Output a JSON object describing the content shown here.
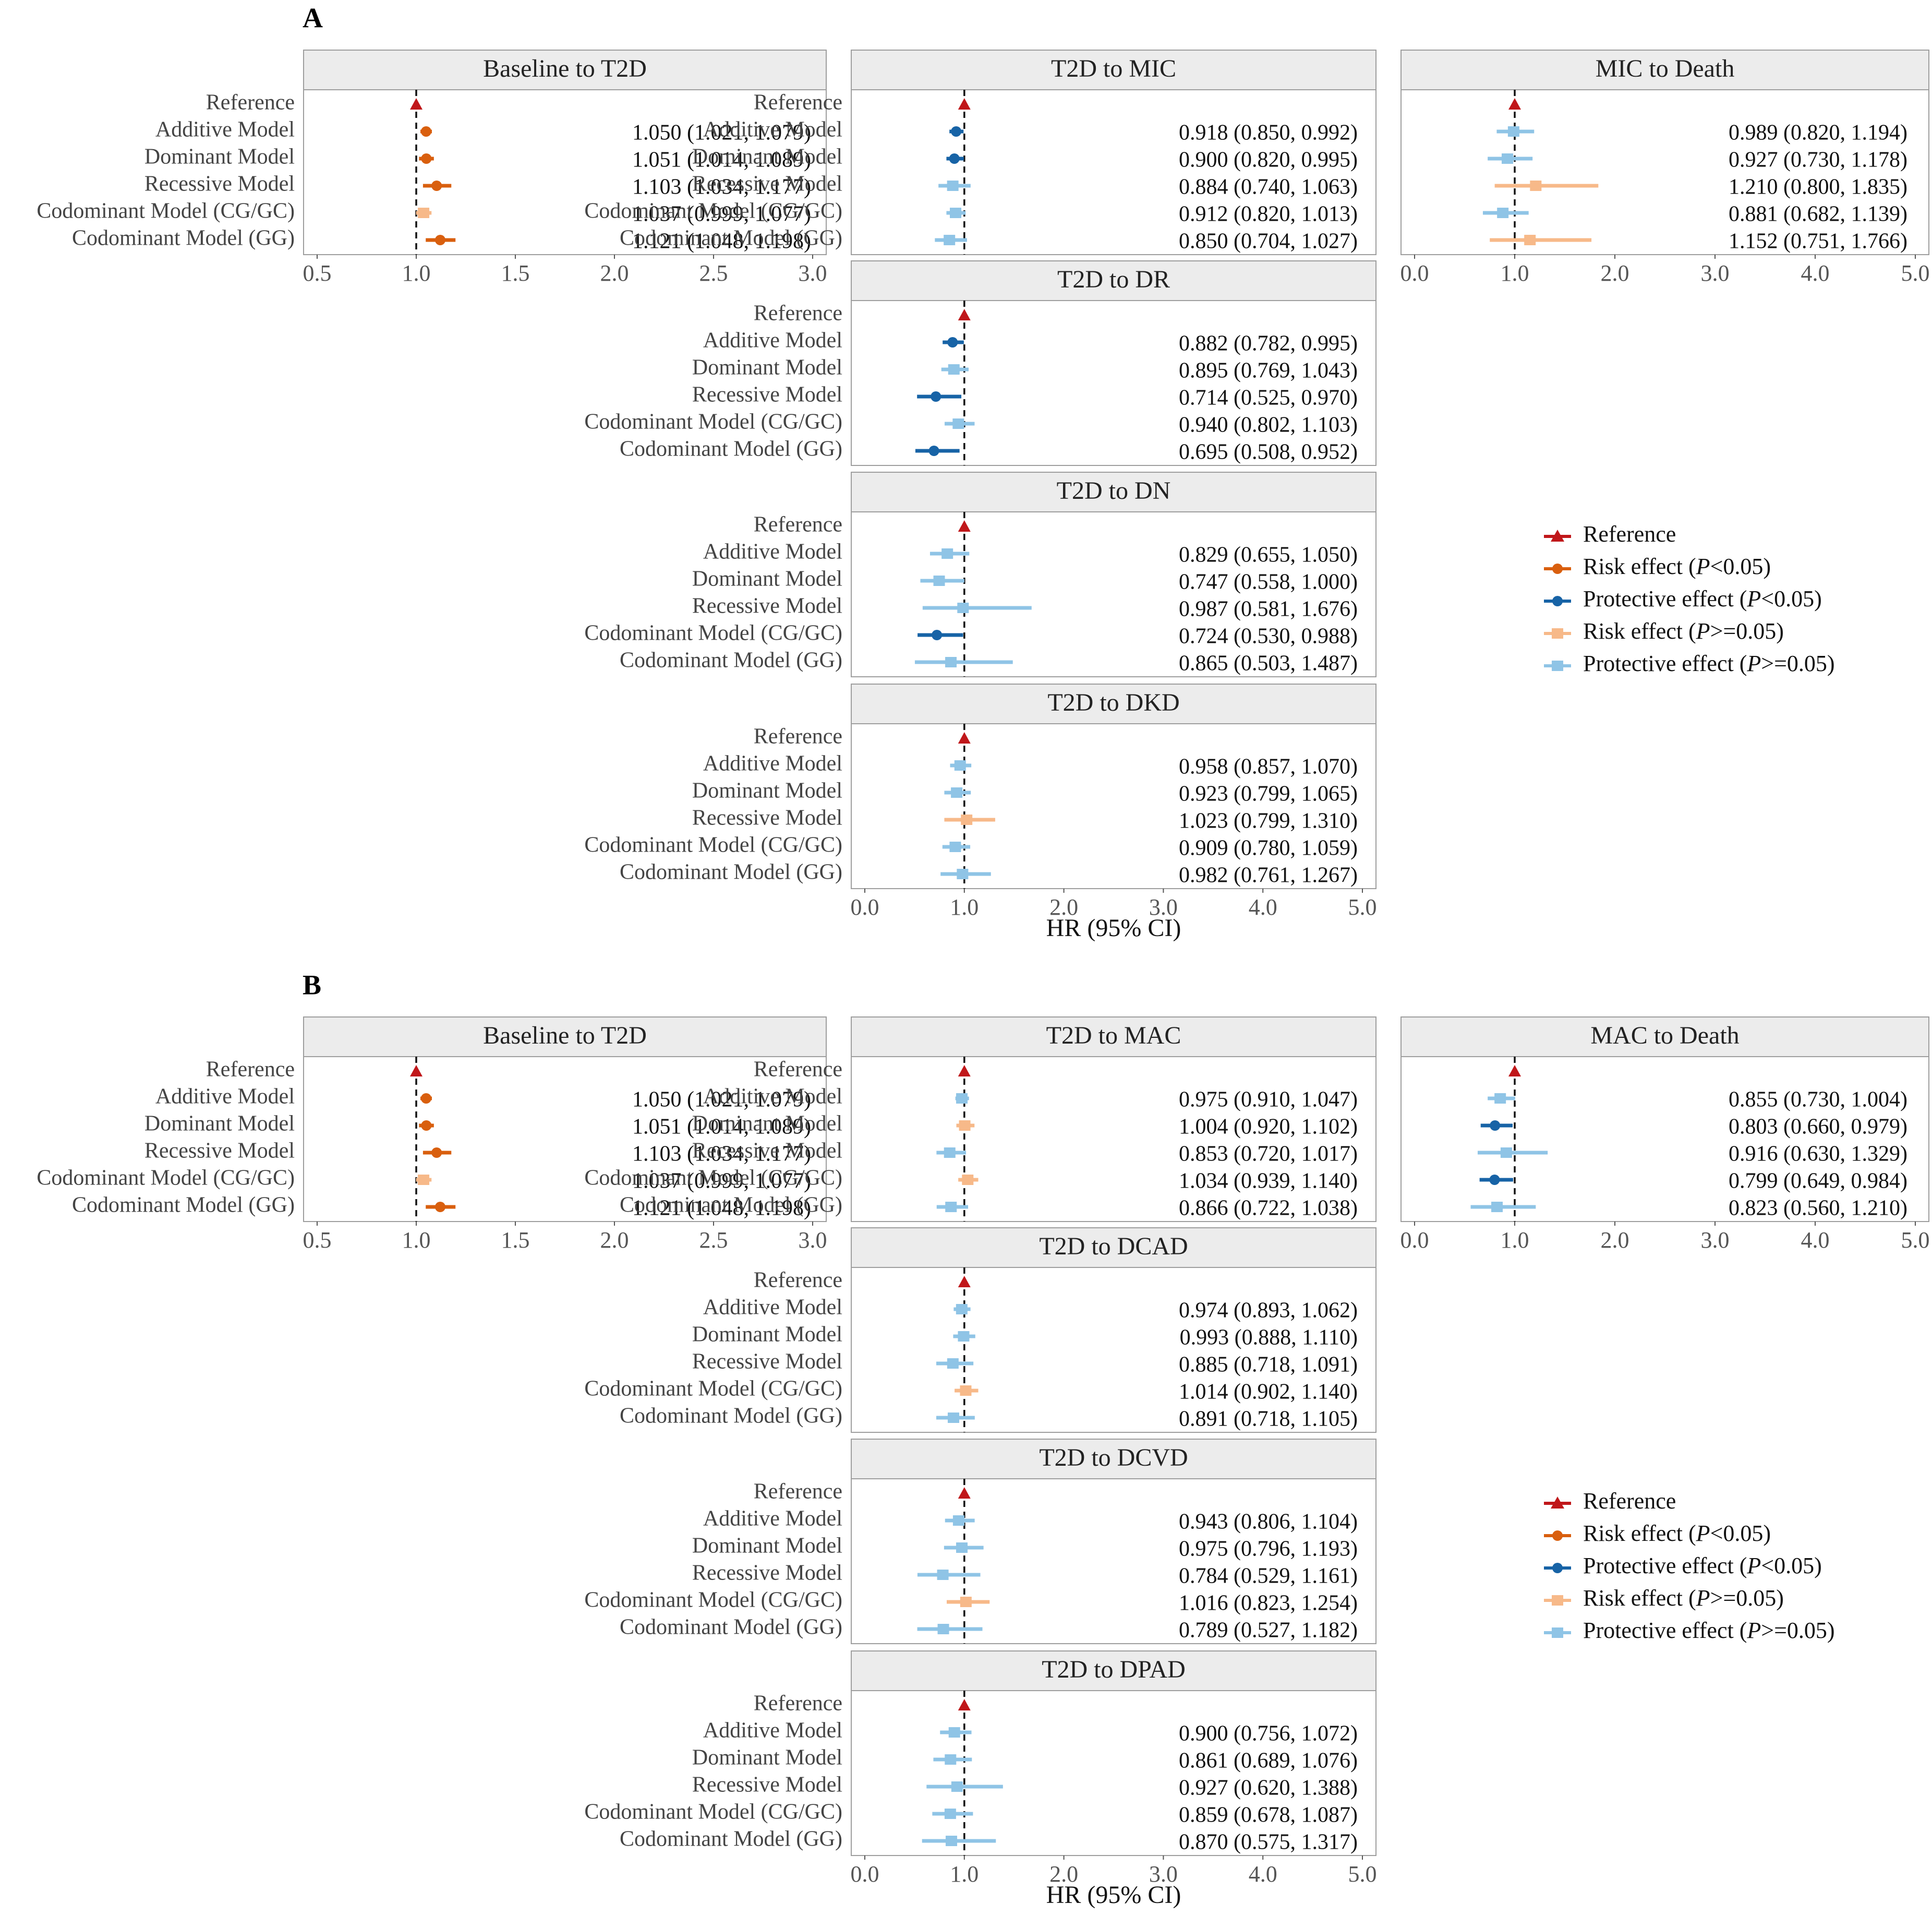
{
  "colors": {
    "reference": "#c0171a",
    "risk_sig": "#d95f0e",
    "protective_sig": "#1763a6",
    "risk_ns": "#f7b989",
    "protective_ns": "#8fc4e6",
    "strip_fill": "#ececec",
    "panel_border": "#9e9e9e"
  },
  "row_labels": [
    "Reference",
    "Additive Model",
    "Dominant Model",
    "Recessive Model",
    "Codominant Model (CG/GC)",
    "Codominant Model (GG)"
  ],
  "axis_title": "HR (95% CI)",
  "legend": [
    {
      "key": "reference",
      "text": "Reference"
    },
    {
      "key": "risk_sig",
      "text": "Risk effect (",
      "italic": "P",
      "suffix": "<0.05)"
    },
    {
      "key": "protective_sig",
      "text": "Protective effect (",
      "italic": "P",
      "suffix": "<0.05)"
    },
    {
      "key": "risk_ns",
      "text": "Risk effect (",
      "italic": "P",
      "suffix": ">=0.05)"
    },
    {
      "key": "protective_ns",
      "text": "Protective effect (",
      "italic": "P",
      "suffix": ">=0.05)"
    }
  ],
  "chart_data": [
    {
      "panel": "A",
      "type": "forest",
      "facets": [
        {
          "title": "Baseline to T2D",
          "xlim": [
            0.5,
            3.0
          ],
          "ticks": [
            "0.5",
            "1.0",
            "1.5",
            "2.0",
            "2.5",
            "3.0"
          ],
          "tick_values": [
            0.5,
            1.0,
            1.5,
            2.0,
            2.5,
            3.0
          ],
          "rows": [
            {
              "model": "Additive Model",
              "hr": 1.05,
              "lo": 1.021,
              "hi": 1.079,
              "effect": "risk_sig",
              "text": "1.050 (1.021, 1.079)"
            },
            {
              "model": "Dominant Model",
              "hr": 1.051,
              "lo": 1.014,
              "hi": 1.089,
              "effect": "risk_sig",
              "text": "1.051 (1.014, 1.089)"
            },
            {
              "model": "Recessive Model",
              "hr": 1.103,
              "lo": 1.034,
              "hi": 1.177,
              "effect": "risk_sig",
              "text": "1.103 (1.034, 1.177)"
            },
            {
              "model": "Codominant Model (CG/GC)",
              "hr": 1.037,
              "lo": 0.999,
              "hi": 1.077,
              "effect": "risk_ns",
              "text": "1.037 (0.999, 1.077)"
            },
            {
              "model": "Codominant Model (GG)",
              "hr": 1.121,
              "lo": 1.048,
              "hi": 1.198,
              "effect": "risk_sig",
              "text": "1.121 (1.048, 1.198)"
            }
          ]
        },
        {
          "title": "T2D to MIC",
          "xlim": [
            0.0,
            5.0
          ],
          "ticks": [],
          "tick_values": [],
          "rows": [
            {
              "model": "Additive Model",
              "hr": 0.918,
              "lo": 0.85,
              "hi": 0.992,
              "effect": "protective_sig",
              "text": "0.918 (0.850, 0.992)"
            },
            {
              "model": "Dominant Model",
              "hr": 0.9,
              "lo": 0.82,
              "hi": 0.995,
              "effect": "protective_sig",
              "text": "0.900 (0.820, 0.995)"
            },
            {
              "model": "Recessive Model",
              "hr": 0.884,
              "lo": 0.74,
              "hi": 1.063,
              "effect": "protective_ns",
              "text": "0.884 (0.740, 1.063)"
            },
            {
              "model": "Codominant Model (CG/GC)",
              "hr": 0.912,
              "lo": 0.82,
              "hi": 1.013,
              "effect": "protective_ns",
              "text": "0.912 (0.820, 1.013)"
            },
            {
              "model": "Codominant Model (GG)",
              "hr": 0.85,
              "lo": 0.704,
              "hi": 1.027,
              "effect": "protective_ns",
              "text": "0.850 (0.704, 1.027)"
            }
          ]
        },
        {
          "title": "MIC to Death",
          "xlim": [
            0.0,
            5.0
          ],
          "ticks": [
            "0.0",
            "1.0",
            "2.0",
            "3.0",
            "4.0",
            "5.0"
          ],
          "tick_values": [
            0,
            1,
            2,
            3,
            4,
            5
          ],
          "rows": [
            {
              "model": "Additive Model",
              "hr": 0.989,
              "lo": 0.82,
              "hi": 1.194,
              "effect": "protective_ns",
              "text": "0.989 (0.820, 1.194)"
            },
            {
              "model": "Dominant Model",
              "hr": 0.927,
              "lo": 0.73,
              "hi": 1.178,
              "effect": "protective_ns",
              "text": "0.927 (0.730, 1.178)"
            },
            {
              "model": "Recessive Model",
              "hr": 1.21,
              "lo": 0.8,
              "hi": 1.835,
              "effect": "risk_ns",
              "text": "1.210 (0.800, 1.835)"
            },
            {
              "model": "Codominant Model (CG/GC)",
              "hr": 0.881,
              "lo": 0.682,
              "hi": 1.139,
              "effect": "protective_ns",
              "text": "0.881 (0.682, 1.139)"
            },
            {
              "model": "Codominant Model (GG)",
              "hr": 1.152,
              "lo": 0.751,
              "hi": 1.766,
              "effect": "risk_ns",
              "text": "1.152 (0.751, 1.766)"
            }
          ]
        },
        {
          "title": "T2D to DR",
          "xlim": [
            0.0,
            5.0
          ],
          "ticks": [],
          "tick_values": [],
          "rows": [
            {
              "model": "Additive Model",
              "hr": 0.882,
              "lo": 0.782,
              "hi": 0.995,
              "effect": "protective_sig",
              "text": "0.882 (0.782, 0.995)"
            },
            {
              "model": "Dominant Model",
              "hr": 0.895,
              "lo": 0.769,
              "hi": 1.043,
              "effect": "protective_ns",
              "text": "0.895 (0.769, 1.043)"
            },
            {
              "model": "Recessive Model",
              "hr": 0.714,
              "lo": 0.525,
              "hi": 0.97,
              "effect": "protective_sig",
              "text": "0.714 (0.525, 0.970)"
            },
            {
              "model": "Codominant Model (CG/GC)",
              "hr": 0.94,
              "lo": 0.802,
              "hi": 1.103,
              "effect": "protective_ns",
              "text": "0.940 (0.802, 1.103)"
            },
            {
              "model": "Codominant Model (GG)",
              "hr": 0.695,
              "lo": 0.508,
              "hi": 0.952,
              "effect": "protective_sig",
              "text": "0.695 (0.508, 0.952)"
            }
          ]
        },
        {
          "title": "T2D to DN",
          "xlim": [
            0.0,
            5.0
          ],
          "ticks": [],
          "tick_values": [],
          "rows": [
            {
              "model": "Additive Model",
              "hr": 0.829,
              "lo": 0.655,
              "hi": 1.05,
              "effect": "protective_ns",
              "text": "0.829 (0.655, 1.050)"
            },
            {
              "model": "Dominant Model",
              "hr": 0.747,
              "lo": 0.558,
              "hi": 1.0,
              "effect": "protective_ns",
              "text": "0.747 (0.558, 1.000)"
            },
            {
              "model": "Recessive Model",
              "hr": 0.987,
              "lo": 0.581,
              "hi": 1.676,
              "effect": "protective_ns",
              "text": "0.987 (0.581, 1.676)"
            },
            {
              "model": "Codominant Model (CG/GC)",
              "hr": 0.724,
              "lo": 0.53,
              "hi": 0.988,
              "effect": "protective_sig",
              "text": "0.724 (0.530, 0.988)"
            },
            {
              "model": "Codominant Model (GG)",
              "hr": 0.865,
              "lo": 0.503,
              "hi": 1.487,
              "effect": "protective_ns",
              "text": "0.865 (0.503, 1.487)"
            }
          ]
        },
        {
          "title": "T2D to DKD",
          "xlim": [
            0.0,
            5.0
          ],
          "ticks": [
            "0.0",
            "1.0",
            "2.0",
            "3.0",
            "4.0",
            "5.0"
          ],
          "tick_values": [
            0,
            1,
            2,
            3,
            4,
            5
          ],
          "rows": [
            {
              "model": "Additive Model",
              "hr": 0.958,
              "lo": 0.857,
              "hi": 1.07,
              "effect": "protective_ns",
              "text": "0.958 (0.857, 1.070)"
            },
            {
              "model": "Dominant Model",
              "hr": 0.923,
              "lo": 0.799,
              "hi": 1.065,
              "effect": "protective_ns",
              "text": "0.923 (0.799, 1.065)"
            },
            {
              "model": "Recessive Model",
              "hr": 1.023,
              "lo": 0.799,
              "hi": 1.31,
              "effect": "risk_ns",
              "text": "1.023 (0.799, 1.310)"
            },
            {
              "model": "Codominant Model (CG/GC)",
              "hr": 0.909,
              "lo": 0.78,
              "hi": 1.059,
              "effect": "protective_ns",
              "text": "0.909 (0.780, 1.059)"
            },
            {
              "model": "Codominant Model (GG)",
              "hr": 0.982,
              "lo": 0.761,
              "hi": 1.267,
              "effect": "protective_ns",
              "text": "0.982 (0.761, 1.267)"
            }
          ]
        }
      ]
    },
    {
      "panel": "B",
      "type": "forest",
      "facets": [
        {
          "title": "Baseline to T2D",
          "xlim": [
            0.5,
            3.0
          ],
          "ticks": [
            "0.5",
            "1.0",
            "1.5",
            "2.0",
            "2.5",
            "3.0"
          ],
          "tick_values": [
            0.5,
            1.0,
            1.5,
            2.0,
            2.5,
            3.0
          ],
          "rows": [
            {
              "model": "Additive Model",
              "hr": 1.05,
              "lo": 1.021,
              "hi": 1.079,
              "effect": "risk_sig",
              "text": "1.050 (1.021, 1.079)"
            },
            {
              "model": "Dominant Model",
              "hr": 1.051,
              "lo": 1.014,
              "hi": 1.089,
              "effect": "risk_sig",
              "text": "1.051 (1.014, 1.089)"
            },
            {
              "model": "Recessive Model",
              "hr": 1.103,
              "lo": 1.034,
              "hi": 1.177,
              "effect": "risk_sig",
              "text": "1.103 (1.034, 1.177)"
            },
            {
              "model": "Codominant Model (CG/GC)",
              "hr": 1.037,
              "lo": 0.999,
              "hi": 1.077,
              "effect": "risk_ns",
              "text": "1.037 (0.999, 1.077)"
            },
            {
              "model": "Codominant Model (GG)",
              "hr": 1.121,
              "lo": 1.048,
              "hi": 1.198,
              "effect": "risk_sig",
              "text": "1.121 (1.048, 1.198)"
            }
          ]
        },
        {
          "title": "T2D to MAC",
          "xlim": [
            0.0,
            5.0
          ],
          "ticks": [],
          "tick_values": [],
          "rows": [
            {
              "model": "Additive Model",
              "hr": 0.975,
              "lo": 0.91,
              "hi": 1.047,
              "effect": "protective_ns",
              "text": "0.975 (0.910, 1.047)"
            },
            {
              "model": "Dominant Model",
              "hr": 1.004,
              "lo": 0.92,
              "hi": 1.102,
              "effect": "risk_ns",
              "text": "1.004 (0.920, 1.102)"
            },
            {
              "model": "Recessive Model",
              "hr": 0.853,
              "lo": 0.72,
              "hi": 1.017,
              "effect": "protective_ns",
              "text": "0.853 (0.720, 1.017)"
            },
            {
              "model": "Codominant Model (CG/GC)",
              "hr": 1.034,
              "lo": 0.939,
              "hi": 1.14,
              "effect": "risk_ns",
              "text": "1.034 (0.939, 1.140)"
            },
            {
              "model": "Codominant Model (GG)",
              "hr": 0.866,
              "lo": 0.722,
              "hi": 1.038,
              "effect": "protective_ns",
              "text": "0.866 (0.722, 1.038)"
            }
          ]
        },
        {
          "title": "MAC to Death",
          "xlim": [
            0.0,
            5.0
          ],
          "ticks": [
            "0.0",
            "1.0",
            "2.0",
            "3.0",
            "4.0",
            "5.0"
          ],
          "tick_values": [
            0,
            1,
            2,
            3,
            4,
            5
          ],
          "rows": [
            {
              "model": "Additive Model",
              "hr": 0.855,
              "lo": 0.73,
              "hi": 1.004,
              "effect": "protective_ns",
              "text": "0.855 (0.730, 1.004)"
            },
            {
              "model": "Dominant Model",
              "hr": 0.803,
              "lo": 0.66,
              "hi": 0.979,
              "effect": "protective_sig",
              "text": "0.803 (0.660, 0.979)"
            },
            {
              "model": "Recessive Model",
              "hr": 0.916,
              "lo": 0.63,
              "hi": 1.329,
              "effect": "protective_ns",
              "text": "0.916 (0.630, 1.329)"
            },
            {
              "model": "Codominant Model (CG/GC)",
              "hr": 0.799,
              "lo": 0.649,
              "hi": 0.984,
              "effect": "protective_sig",
              "text": "0.799 (0.649, 0.984)"
            },
            {
              "model": "Codominant Model (GG)",
              "hr": 0.823,
              "lo": 0.56,
              "hi": 1.21,
              "effect": "protective_ns",
              "text": "0.823 (0.560, 1.210)"
            }
          ]
        },
        {
          "title": "T2D to DCAD",
          "xlim": [
            0.0,
            5.0
          ],
          "ticks": [],
          "tick_values": [],
          "rows": [
            {
              "model": "Additive Model",
              "hr": 0.974,
              "lo": 0.893,
              "hi": 1.062,
              "effect": "protective_ns",
              "text": "0.974 (0.893, 1.062)"
            },
            {
              "model": "Dominant Model",
              "hr": 0.993,
              "lo": 0.888,
              "hi": 1.11,
              "effect": "protective_ns",
              "text": "0.993 (0.888, 1.110)"
            },
            {
              "model": "Recessive Model",
              "hr": 0.885,
              "lo": 0.718,
              "hi": 1.091,
              "effect": "protective_ns",
              "text": "0.885 (0.718, 1.091)"
            },
            {
              "model": "Codominant Model (CG/GC)",
              "hr": 1.014,
              "lo": 0.902,
              "hi": 1.14,
              "effect": "risk_ns",
              "text": "1.014 (0.902, 1.140)"
            },
            {
              "model": "Codominant Model (GG)",
              "hr": 0.891,
              "lo": 0.718,
              "hi": 1.105,
              "effect": "protective_ns",
              "text": "0.891 (0.718, 1.105)"
            }
          ]
        },
        {
          "title": "T2D to DCVD",
          "xlim": [
            0.0,
            5.0
          ],
          "ticks": [],
          "tick_values": [],
          "rows": [
            {
              "model": "Additive Model",
              "hr": 0.943,
              "lo": 0.806,
              "hi": 1.104,
              "effect": "protective_ns",
              "text": "0.943 (0.806, 1.104)"
            },
            {
              "model": "Dominant Model",
              "hr": 0.975,
              "lo": 0.796,
              "hi": 1.193,
              "effect": "protective_ns",
              "text": "0.975 (0.796, 1.193)"
            },
            {
              "model": "Recessive Model",
              "hr": 0.784,
              "lo": 0.529,
              "hi": 1.161,
              "effect": "protective_ns",
              "text": "0.784 (0.529, 1.161)"
            },
            {
              "model": "Codominant Model (CG/GC)",
              "hr": 1.016,
              "lo": 0.823,
              "hi": 1.254,
              "effect": "risk_ns",
              "text": "1.016 (0.823, 1.254)"
            },
            {
              "model": "Codominant Model (GG)",
              "hr": 0.789,
              "lo": 0.527,
              "hi": 1.182,
              "effect": "protective_ns",
              "text": "0.789 (0.527, 1.182)"
            }
          ]
        },
        {
          "title": "T2D to DPAD",
          "xlim": [
            0.0,
            5.0
          ],
          "ticks": [
            "0.0",
            "1.0",
            "2.0",
            "3.0",
            "4.0",
            "5.0"
          ],
          "tick_values": [
            0,
            1,
            2,
            3,
            4,
            5
          ],
          "rows": [
            {
              "model": "Additive Model",
              "hr": 0.9,
              "lo": 0.756,
              "hi": 1.072,
              "effect": "protective_ns",
              "text": "0.900 (0.756, 1.072)"
            },
            {
              "model": "Dominant Model",
              "hr": 0.861,
              "lo": 0.689,
              "hi": 1.076,
              "effect": "protective_ns",
              "text": "0.861 (0.689, 1.076)"
            },
            {
              "model": "Recessive Model",
              "hr": 0.927,
              "lo": 0.62,
              "hi": 1.388,
              "effect": "protective_ns",
              "text": "0.927 (0.620, 1.388)"
            },
            {
              "model": "Codominant Model (CG/GC)",
              "hr": 0.859,
              "lo": 0.678,
              "hi": 1.087,
              "effect": "protective_ns",
              "text": "0.859 (0.678, 1.087)"
            },
            {
              "model": "Codominant Model (GG)",
              "hr": 0.87,
              "lo": 0.575,
              "hi": 1.317,
              "effect": "protective_ns",
              "text": "0.870 (0.575, 1.317)"
            }
          ]
        }
      ]
    }
  ]
}
